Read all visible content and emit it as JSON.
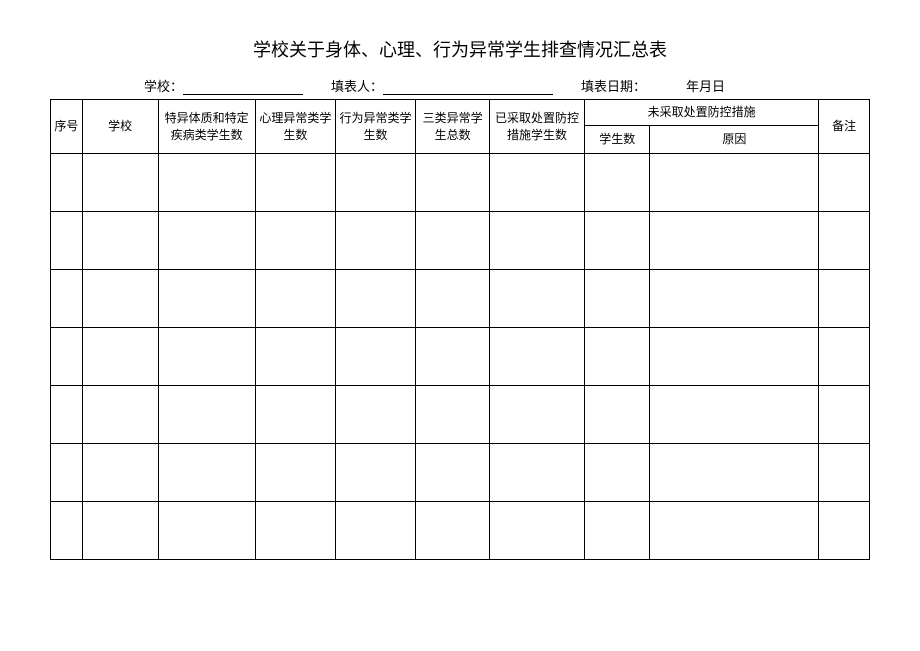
{
  "title": "学校关于身体、心理、行为异常学生排查情况汇总表",
  "meta": {
    "school_label": "学校：",
    "filler_label": "填表人：",
    "date_label": "填表日期：",
    "date_value": "年月日"
  },
  "table": {
    "headers": {
      "col1": "序号",
      "col2": "学校",
      "col3": "特异体质和特定疾病类学生数",
      "col4": "心理异常类学生数",
      "col5": "行为异常类学生数",
      "col6": "三类异常学生总数",
      "col7": "已采取处置防控措施学生数",
      "col8_group": "未采取处置防控措施",
      "col8a": "学生数",
      "col8b": "原因",
      "col9": "备注"
    },
    "col_widths": {
      "c1": "30px",
      "c2": "72px",
      "c3": "92px",
      "c4": "76px",
      "c5": "76px",
      "c6": "70px",
      "c7": "90px",
      "c8a": "62px",
      "c8b": "160px",
      "c9": "48px"
    },
    "num_data_rows": 7,
    "colors": {
      "border": "#000000",
      "text": "#000000",
      "background": "#ffffff"
    }
  }
}
